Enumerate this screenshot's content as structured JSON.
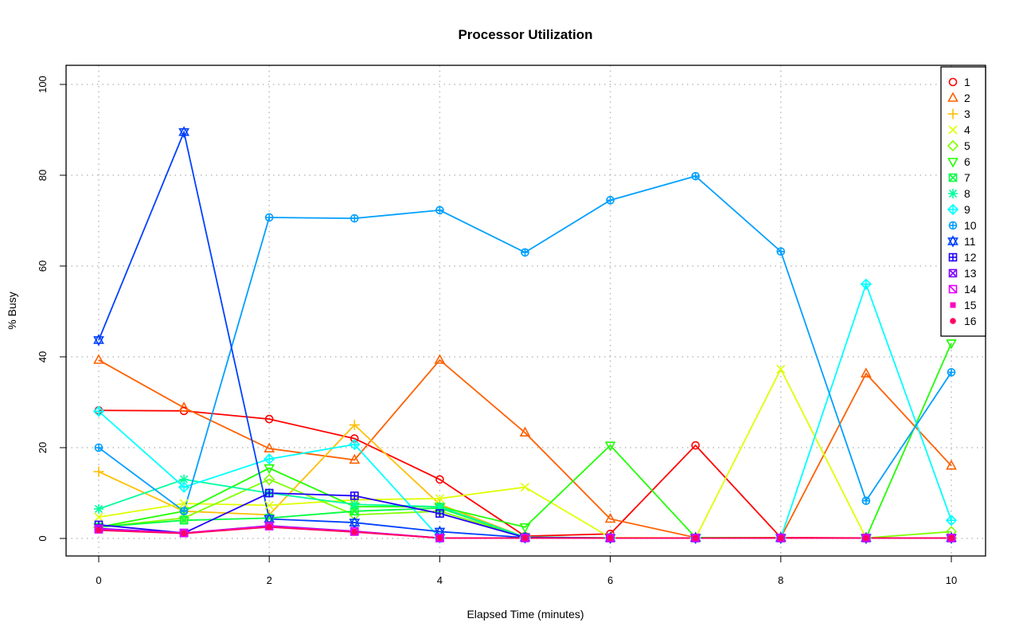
{
  "chart_data": {
    "type": "line",
    "title": "Processor Utilization",
    "xlabel": "Elapsed Time (minutes)",
    "ylabel": "% Busy",
    "xlim": [
      0,
      10
    ],
    "ylim": [
      0,
      100
    ],
    "x_ticks": [
      "0",
      "2",
      "4",
      "6",
      "8",
      "10"
    ],
    "y_ticks": [
      "0",
      "20",
      "40",
      "60",
      "80",
      "100"
    ],
    "grid": true,
    "legend_position": "top-right",
    "x": [
      0,
      1,
      2,
      3,
      4,
      5,
      6,
      7,
      8,
      9,
      10
    ],
    "series": [
      {
        "name": "1",
        "color": "#FF0000",
        "marker": "circle",
        "values": [
          28.2,
          28.1,
          26.3,
          22.0,
          13.0,
          0.5,
          1.0,
          20.5,
          0.2,
          0.1,
          0.1
        ]
      },
      {
        "name": "2",
        "color": "#FF6000",
        "marker": "triangle",
        "values": [
          39.3,
          28.8,
          19.8,
          17.3,
          39.3,
          23.3,
          4.3,
          0.2,
          0.2,
          36.3,
          16.0
        ]
      },
      {
        "name": "3",
        "color": "#FFBF00",
        "marker": "plus",
        "values": [
          14.7,
          6.0,
          5.2,
          25.0,
          7.5,
          0.3,
          0.1,
          0.1,
          0.1,
          0.1,
          0.1
        ]
      },
      {
        "name": "4",
        "color": "#DFFF00",
        "marker": "cross",
        "values": [
          4.7,
          7.7,
          7.3,
          8.5,
          8.8,
          11.3,
          0.2,
          0.1,
          37.3,
          0.1,
          0.1
        ]
      },
      {
        "name": "5",
        "color": "#80FF00",
        "marker": "diamond",
        "values": [
          2.5,
          4.5,
          13.0,
          5.2,
          6.0,
          0.3,
          0.1,
          0.1,
          0.1,
          0.1,
          1.5
        ]
      },
      {
        "name": "6",
        "color": "#20FF00",
        "marker": "triangle-down",
        "values": [
          2.5,
          6.0,
          15.5,
          7.0,
          7.0,
          2.5,
          20.5,
          0.2,
          0.1,
          0.1,
          43.0
        ]
      },
      {
        "name": "7",
        "color": "#00FF40",
        "marker": "square-cross",
        "values": [
          2.5,
          4.0,
          4.5,
          6.0,
          6.7,
          0.3,
          0.1,
          0.1,
          0.1,
          0.1,
          0.1
        ]
      },
      {
        "name": "8",
        "color": "#00FF9F",
        "marker": "asterisk",
        "values": [
          6.5,
          13.0,
          10.0,
          7.5,
          7.0,
          0.3,
          0.1,
          0.1,
          0.1,
          0.1,
          0.1
        ]
      },
      {
        "name": "9",
        "color": "#00FFFF",
        "marker": "diamond-plus",
        "values": [
          28.0,
          11.3,
          17.5,
          20.7,
          0.1,
          0.1,
          0.1,
          0.1,
          0.1,
          56.0,
          4.0
        ]
      },
      {
        "name": "10",
        "color": "#009FFF",
        "marker": "circle-plus",
        "values": [
          20.0,
          6.0,
          70.7,
          70.5,
          72.3,
          63.0,
          74.5,
          79.8,
          63.2,
          8.3,
          36.6
        ]
      },
      {
        "name": "11",
        "color": "#0040FF",
        "marker": "star-of-david",
        "values": [
          43.7,
          89.5,
          4.3,
          3.5,
          1.5,
          0.2,
          0.1,
          0.1,
          0.1,
          0.1,
          0.1
        ]
      },
      {
        "name": "12",
        "color": "#2000FF",
        "marker": "square-plus",
        "values": [
          3.0,
          1.2,
          10.0,
          9.4,
          5.5,
          0.2,
          0.1,
          0.1,
          0.1,
          0.1,
          0.1
        ]
      },
      {
        "name": "13",
        "color": "#8000FF",
        "marker": "circle-cross",
        "values": [
          2.2,
          1.2,
          2.8,
          1.6,
          0.1,
          0.1,
          0.1,
          0.1,
          0.1,
          0.1,
          0.1
        ]
      },
      {
        "name": "14",
        "color": "#DF00FF",
        "marker": "square-x",
        "values": [
          2.0,
          1.2,
          2.7,
          1.5,
          0.1,
          0.1,
          0.1,
          0.1,
          0.1,
          0.1,
          0.1
        ]
      },
      {
        "name": "15",
        "color": "#FF00BF",
        "marker": "filled-square",
        "values": [
          1.9,
          1.2,
          2.6,
          1.5,
          0.1,
          0.1,
          0.1,
          0.1,
          0.1,
          0.1,
          0.1
        ]
      },
      {
        "name": "16",
        "color": "#FF0060",
        "marker": "filled-circle",
        "values": [
          1.8,
          1.1,
          2.5,
          1.4,
          0.1,
          0.1,
          0.1,
          0.1,
          0.1,
          0.1,
          0.1
        ]
      }
    ]
  }
}
